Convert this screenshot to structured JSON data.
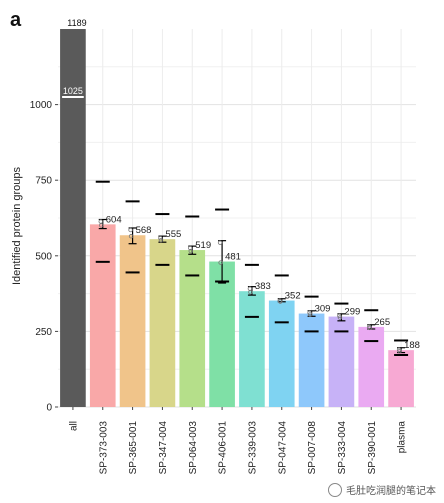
{
  "panel_label": "a",
  "watermark": "毛肚吃润腿的笔记本",
  "chart_data": {
    "type": "bar",
    "ylabel": "Identified protein groups",
    "xlabel": "",
    "ylim": [
      0,
      1250
    ],
    "yticks": [
      0,
      250,
      500,
      750,
      1000
    ],
    "grid": true,
    "categories": [
      "all",
      "SP-373-003",
      "SP-365-001",
      "SP-347-004",
      "SP-064-003",
      "SP-406-001",
      "SP-339-003",
      "SP-047-004",
      "SP-007-008",
      "SP-333-004",
      "SP-390-001",
      "plasma"
    ],
    "values": [
      1189,
      604,
      568,
      555,
      519,
      481,
      383,
      352,
      309,
      299,
      265,
      188
    ],
    "value_labels": [
      "1189",
      "604",
      "568",
      "555",
      "519",
      "481",
      "383",
      "352",
      "309",
      "299",
      "265",
      "188"
    ],
    "error_low": [
      null,
      590,
      540,
      545,
      505,
      410,
      370,
      348,
      300,
      285,
      258,
      180
    ],
    "error_high": [
      null,
      620,
      592,
      565,
      532,
      550,
      398,
      358,
      318,
      308,
      272,
      196
    ],
    "upper_marks": [
      null,
      745,
      680,
      638,
      630,
      653,
      470,
      435,
      365,
      342,
      320,
      220
    ],
    "lower_marks": [
      null,
      480,
      445,
      470,
      435,
      415,
      298,
      280,
      250,
      250,
      218,
      172
    ],
    "all_sub_value": 1025,
    "all_sub_label": "1025",
    "colors": [
      "#5a5a5a",
      "#f9a8a8",
      "#f0c48a",
      "#d8d68a",
      "#b5df8a",
      "#7fe0a6",
      "#7fe0d2",
      "#7fd3f2",
      "#8ec8fb",
      "#c7b2f7",
      "#eaaaf2",
      "#f7a9d3"
    ]
  }
}
